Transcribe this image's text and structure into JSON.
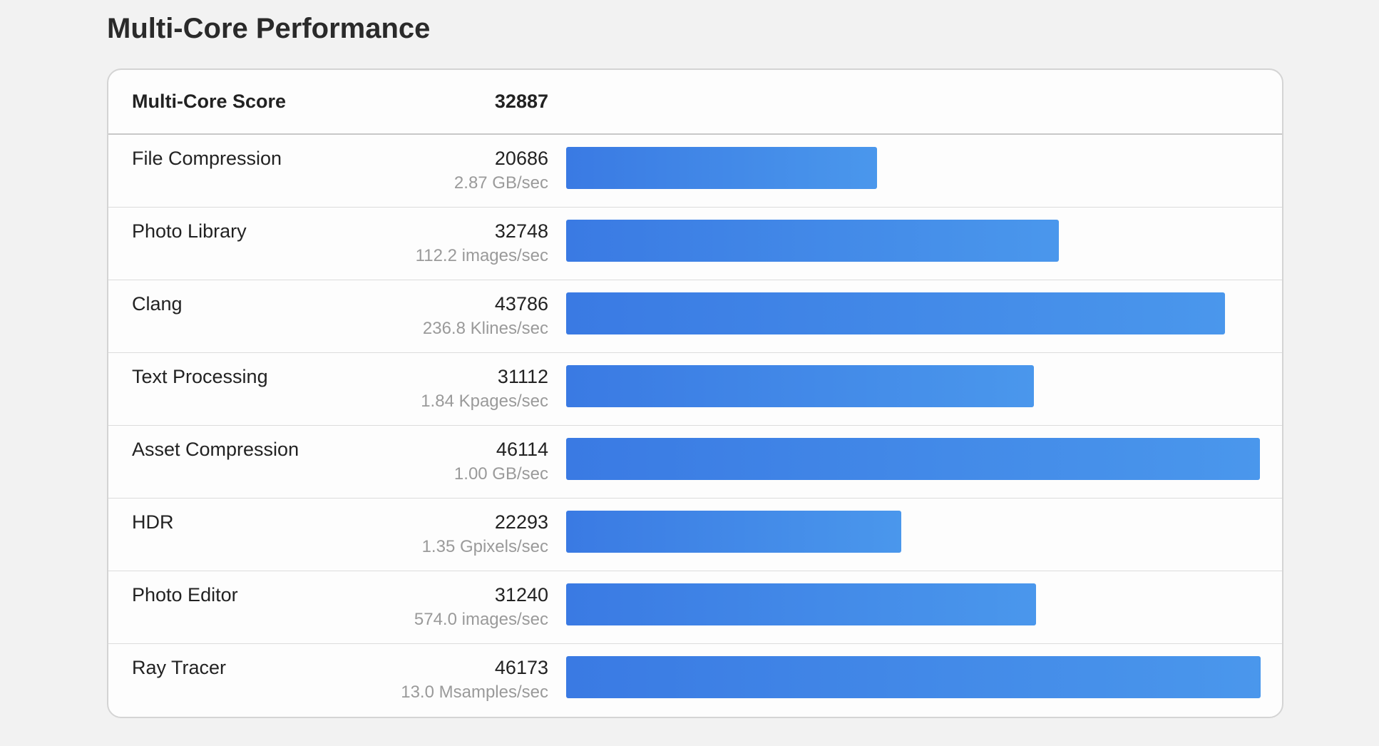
{
  "title": "Multi-Core Performance",
  "table": {
    "header": {
      "label": "Multi-Core Score",
      "score": 32887
    },
    "rows": [
      {
        "name": "File Compression",
        "score": 20686,
        "rate": "2.87 GB/sec"
      },
      {
        "name": "Photo Library",
        "score": 32748,
        "rate": "112.2 images/sec"
      },
      {
        "name": "Clang",
        "score": 43786,
        "rate": "236.8 Klines/sec"
      },
      {
        "name": "Text Processing",
        "score": 31112,
        "rate": "1.84 Kpages/sec"
      },
      {
        "name": "Asset Compression",
        "score": 46114,
        "rate": "1.00 GB/sec"
      },
      {
        "name": "HDR",
        "score": 22293,
        "rate": "1.35 Gpixels/sec"
      },
      {
        "name": "Photo Editor",
        "score": 31240,
        "rate": "574.0 images/sec"
      },
      {
        "name": "Ray Tracer",
        "score": 46173,
        "rate": "13.0 Msamples/sec"
      }
    ]
  }
}
